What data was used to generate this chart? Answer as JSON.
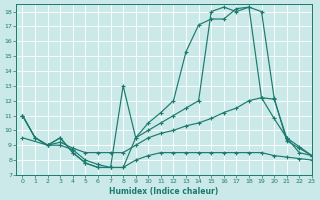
{
  "xlabel": "Humidex (Indice chaleur)",
  "xlim": [
    -0.5,
    23
  ],
  "ylim": [
    7,
    18.5
  ],
  "xticks": [
    0,
    1,
    2,
    3,
    4,
    5,
    6,
    7,
    8,
    9,
    10,
    11,
    12,
    13,
    14,
    15,
    16,
    17,
    18,
    19,
    20,
    21,
    22,
    23
  ],
  "yticks": [
    7,
    8,
    9,
    10,
    11,
    12,
    13,
    14,
    15,
    16,
    17,
    18
  ],
  "bg_color": "#cce9e9",
  "line_color": "#1a7a6e",
  "line1_x": [
    0,
    1,
    2,
    3,
    4,
    5,
    6,
    7,
    8,
    9,
    10,
    11,
    12,
    13,
    14,
    15,
    16,
    17,
    18,
    19,
    20,
    21,
    22,
    23
  ],
  "line1_y": [
    11,
    9.5,
    9,
    9.5,
    8.5,
    7.8,
    7.5,
    7.5,
    7.5,
    9.5,
    10.5,
    11.2,
    12.0,
    15.3,
    17.1,
    17.5,
    17.5,
    18.2,
    18.3,
    18.0,
    12.2,
    9.3,
    8.8,
    8.3
  ],
  "line2_x": [
    0,
    1,
    2,
    3,
    4,
    5,
    6,
    7,
    8,
    9,
    10,
    11,
    12,
    13,
    14,
    15,
    16,
    17,
    18,
    19,
    20,
    21,
    22,
    23
  ],
  "line2_y": [
    11,
    9.5,
    9,
    9.5,
    8.5,
    7.8,
    7.5,
    7.5,
    13.0,
    9.5,
    10.0,
    10.5,
    11.0,
    11.5,
    12.0,
    18.0,
    18.3,
    18.0,
    18.3,
    12.2,
    12.1,
    9.5,
    8.5,
    8.3
  ],
  "line3_x": [
    0,
    1,
    2,
    3,
    4,
    5,
    6,
    7,
    8,
    9,
    10,
    11,
    12,
    13,
    14,
    15,
    16,
    17,
    18,
    19,
    20,
    21,
    22,
    23
  ],
  "line3_y": [
    11,
    9.5,
    9,
    9.2,
    8.8,
    8.5,
    8.5,
    8.5,
    8.5,
    9.0,
    9.5,
    9.8,
    10.0,
    10.3,
    10.5,
    10.8,
    11.2,
    11.5,
    12.0,
    12.2,
    10.8,
    9.5,
    8.9,
    8.3
  ],
  "line4_x": [
    0,
    2,
    3,
    4,
    5,
    6,
    7,
    8,
    9,
    10,
    11,
    12,
    13,
    14,
    15,
    16,
    17,
    18,
    19,
    20,
    21,
    22,
    23
  ],
  "line4_y": [
    9.5,
    9.0,
    9.0,
    8.7,
    8.0,
    7.7,
    7.5,
    7.5,
    8.0,
    8.3,
    8.5,
    8.5,
    8.5,
    8.5,
    8.5,
    8.5,
    8.5,
    8.5,
    8.5,
    8.3,
    8.2,
    8.1,
    8.0
  ]
}
